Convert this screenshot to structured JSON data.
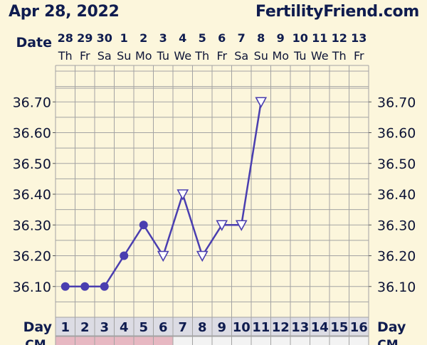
{
  "header": {
    "date": "Apr 28, 2022",
    "site": "FertilityFriend.com"
  },
  "chart_data": {
    "type": "line",
    "title": "",
    "xlabel": "Day",
    "ylabel": "",
    "date_row_label": "Date",
    "day_row_label": "Day",
    "extra_row_label": "CM",
    "grid": true,
    "columns": [
      {
        "date": "28",
        "weekday": "Th",
        "day": "1"
      },
      {
        "date": "29",
        "weekday": "Fr",
        "day": "2"
      },
      {
        "date": "30",
        "weekday": "Sa",
        "day": "3"
      },
      {
        "date": "1",
        "weekday": "Su",
        "day": "4"
      },
      {
        "date": "2",
        "weekday": "Mo",
        "day": "5"
      },
      {
        "date": "3",
        "weekday": "Tu",
        "day": "6"
      },
      {
        "date": "4",
        "weekday": "We",
        "day": "7"
      },
      {
        "date": "5",
        "weekday": "Th",
        "day": "8"
      },
      {
        "date": "6",
        "weekday": "Fr",
        "day": "9"
      },
      {
        "date": "7",
        "weekday": "Sa",
        "day": "10"
      },
      {
        "date": "8",
        "weekday": "Su",
        "day": "11"
      },
      {
        "date": "9",
        "weekday": "Mo",
        "day": "12"
      },
      {
        "date": "10",
        "weekday": "Tu",
        "day": "13"
      },
      {
        "date": "11",
        "weekday": "We",
        "day": "14"
      },
      {
        "date": "12",
        "weekday": "Th",
        "day": "15"
      },
      {
        "date": "13",
        "weekday": "Fr",
        "day": "16"
      }
    ],
    "y_ticks": [
      "36.10",
      "36.20",
      "36.30",
      "36.40",
      "36.50",
      "36.60",
      "36.70"
    ],
    "ylim": [
      36.0,
      36.8
    ],
    "series": [
      {
        "values": [
          36.1,
          36.1,
          36.1,
          36.2,
          36.3,
          36.2,
          36.4,
          36.2,
          36.3,
          36.3,
          36.7,
          null,
          null,
          null,
          null,
          null
        ],
        "markers": [
          "circle",
          "circle",
          "circle",
          "circle",
          "circle",
          "triangle",
          "triangle",
          "triangle",
          "triangle",
          "triangle",
          "triangle",
          null,
          null,
          null,
          null,
          null
        ],
        "color": "#4a3eb0"
      }
    ],
    "cm_shaded_days": [
      "1",
      "2",
      "3",
      "4",
      "5",
      "6"
    ],
    "colors": {
      "background": "#fcf6dc",
      "grid_line": "#a3a3a3",
      "line": "#4a3eb0",
      "day_cell": "#dcdce4",
      "cm_cell": "#e7b8c2"
    }
  }
}
